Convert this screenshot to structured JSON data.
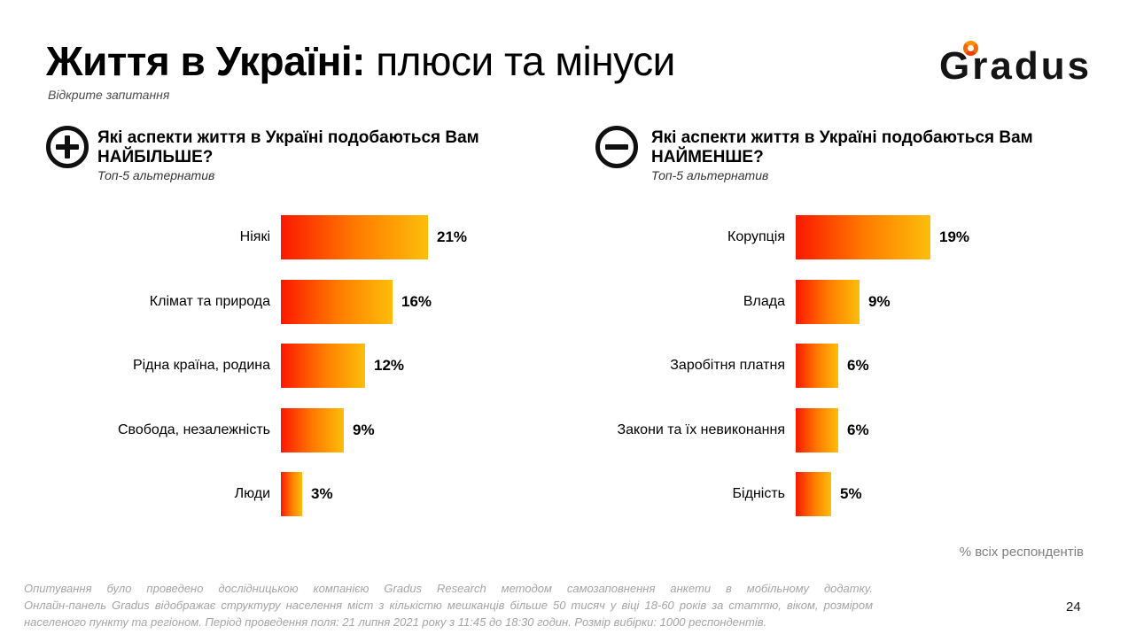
{
  "slide": {
    "title_bold": "Життя в Україні:",
    "title_regular": " плюси та мінуси",
    "subtitle": "Відкрите запитання",
    "axis_note": "% всіх респондентів",
    "page_number": "24",
    "footer_lines": [
      "Опитування було проведено дослідницькою компанією Gradus Research методом самозаповнення анкети в мобільному додатку.",
      "Онлайн-панель Gradus відображає структуру населення міст з кількістю мешканців більше 50 тисяч у віці 18-60 років за статтю, віком, розміром",
      "населеного пункту та регіоном. Період проведення поля: 21 липня 2021 року з 11:45 до 18:30 годин. Розмір вибірки: 1000 респондентів."
    ]
  },
  "logo": {
    "text": "Gradus",
    "ring_icon": "degree-ring-icon",
    "ring_color": "#fb6700"
  },
  "colors": {
    "bar_gradient_start": "#fb1800",
    "bar_gradient_mid": "#ff7c00",
    "bar_gradient_end": "#fcbe0a",
    "footer_gray": "#a5a5a5",
    "note_gray": "#7f7f7f",
    "text_black": "#000000"
  },
  "chart_data": [
    {
      "type": "bar",
      "orientation": "horizontal",
      "icon": "plus-circle-icon",
      "title": "Які аспекти життя в Україні подобаються Вам НАЙБІЛЬШЕ?",
      "subtitle": "Топ-5 альтернатив",
      "unit": "%",
      "categories": [
        "Ніякі",
        "Клімат та природа",
        "Рідна країна, родина",
        "Свобода, незалежність",
        "Люди"
      ],
      "values": [
        21,
        16,
        12,
        9,
        3
      ],
      "value_labels": [
        "21%",
        "16%",
        "12%",
        "9%",
        "3%"
      ],
      "xlim": [
        0,
        21
      ],
      "grid": false,
      "legend": false
    },
    {
      "type": "bar",
      "orientation": "horizontal",
      "icon": "minus-circle-icon",
      "title": "Які аспекти життя в Україні подобаються Вам НАЙМЕНШЕ?",
      "subtitle": "Топ-5 альтернатив",
      "unit": "%",
      "categories": [
        "Корупція",
        "Влада",
        "Заробітня платня",
        "Закони та їх невиконання",
        "Бідність"
      ],
      "values": [
        19,
        9,
        6,
        6,
        5
      ],
      "value_labels": [
        "19%",
        "9%",
        "6%",
        "6%",
        "5%"
      ],
      "xlim": [
        0,
        19
      ],
      "grid": false,
      "legend": false
    }
  ]
}
